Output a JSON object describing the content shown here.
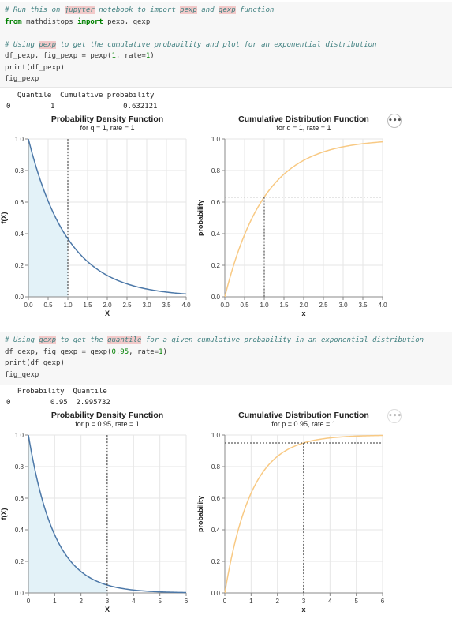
{
  "cell1": {
    "lines": [
      [
        {
          "t": "# Run this on ",
          "c": "cm"
        },
        {
          "t": "jupyter",
          "c": "cm hl"
        },
        {
          "t": " notebook to import ",
          "c": "cm"
        },
        {
          "t": "pexp",
          "c": "cm hl"
        },
        {
          "t": " and ",
          "c": "cm"
        },
        {
          "t": "qexp",
          "c": "cm hl"
        },
        {
          "t": " function",
          "c": "cm"
        }
      ],
      [
        {
          "t": "from",
          "c": "kw"
        },
        {
          "t": " mathdistops ",
          "c": ""
        },
        {
          "t": "import",
          "c": "kw"
        },
        {
          "t": " pexp, qexp",
          "c": ""
        }
      ],
      [
        {
          "t": "",
          "c": ""
        }
      ],
      [
        {
          "t": "# Using ",
          "c": "cm"
        },
        {
          "t": "pexp",
          "c": "cm hl"
        },
        {
          "t": " to get the cumulative probability and plot for an exponential distribution",
          "c": "cm"
        }
      ],
      [
        {
          "t": "df_pexp, fig_pexp = pexp(",
          "c": ""
        },
        {
          "t": "1",
          "c": "nm"
        },
        {
          "t": ", rate=",
          "c": ""
        },
        {
          "t": "1",
          "c": "nm"
        },
        {
          "t": ")",
          "c": ""
        }
      ],
      [
        {
          "t": "print(df_pexp)",
          "c": ""
        }
      ],
      [
        {
          "t": "fig_pexp",
          "c": ""
        }
      ]
    ]
  },
  "output1": {
    "header": "Quantile  Cumulative probability",
    "index": "0",
    "row": "1                0.632121"
  },
  "cell2": {
    "lines": [
      [
        {
          "t": "# Using ",
          "c": "cm"
        },
        {
          "t": "qexp",
          "c": "cm hl"
        },
        {
          "t": " to get the ",
          "c": "cm"
        },
        {
          "t": "quantile",
          "c": "cm hl"
        },
        {
          "t": " for a given cumulative probability in an exponential distribution",
          "c": "cm"
        }
      ],
      [
        {
          "t": "df_qexp, fig_qexp = qexp(",
          "c": ""
        },
        {
          "t": "0.95",
          "c": "nm"
        },
        {
          "t": ", rate=",
          "c": ""
        },
        {
          "t": "1",
          "c": "nm"
        },
        {
          "t": ")",
          "c": ""
        }
      ],
      [
        {
          "t": "print(df_qexp)",
          "c": ""
        }
      ],
      [
        {
          "t": "fig_qexp",
          "c": ""
        }
      ]
    ]
  },
  "output2": {
    "header": "Probability  Quantile",
    "index": "0",
    "row": "0.95  2.995732"
  },
  "more_label": "•••",
  "colors": {
    "pdf": "#4c78a8",
    "pdf_fill": "#e3f2f8",
    "cdf": "#f8c983",
    "grid": "#e6e6e6"
  },
  "chart_data": [
    {
      "type": "area",
      "title": "Probability Density Function",
      "subtitle": "for q = 1, rate = 1",
      "xlabel": "X",
      "ylabel": "f(X)",
      "function": "rate*exp(-rate*x)",
      "rate": 1,
      "xlim": [
        0,
        4
      ],
      "ylim": [
        0,
        1
      ],
      "xticks": [
        "0.0",
        "0.5",
        "1.0",
        "1.5",
        "2.0",
        "2.5",
        "3.0",
        "3.5",
        "4.0"
      ],
      "xtick_values": [
        0,
        0.5,
        1,
        1.5,
        2,
        2.5,
        3,
        3.5,
        4
      ],
      "yticks": [
        "0.0",
        "0.2",
        "0.4",
        "0.6",
        "0.8",
        "1.0"
      ],
      "ytick_values": [
        0,
        0.2,
        0.4,
        0.6,
        0.8,
        1
      ],
      "shade_to": 1,
      "vline": 1
    },
    {
      "type": "line",
      "title": "Cumulative Distribution Function",
      "subtitle": "for q = 1, rate = 1",
      "xlabel": "x",
      "ylabel": "probability",
      "function": "1-exp(-rate*x)",
      "rate": 1,
      "xlim": [
        0,
        4
      ],
      "ylim": [
        0,
        1
      ],
      "xticks": [
        "0.0",
        "0.5",
        "1.0",
        "1.5",
        "2.0",
        "2.5",
        "3.0",
        "3.5",
        "4.0"
      ],
      "xtick_values": [
        0,
        0.5,
        1,
        1.5,
        2,
        2.5,
        3,
        3.5,
        4
      ],
      "yticks": [
        "0.0",
        "0.2",
        "0.4",
        "0.6",
        "0.8",
        "1.0"
      ],
      "ytick_values": [
        0,
        0.2,
        0.4,
        0.6,
        0.8,
        1
      ],
      "vline": 1,
      "hline": 0.632121
    },
    {
      "type": "area",
      "title": "Probability Density Function",
      "subtitle": "for p = 0.95, rate = 1",
      "xlabel": "X",
      "ylabel": "f(X)",
      "function": "rate*exp(-rate*x)",
      "rate": 1,
      "xlim": [
        0,
        6
      ],
      "ylim": [
        0,
        1
      ],
      "xticks": [
        "0",
        "1",
        "2",
        "3",
        "4",
        "5",
        "6"
      ],
      "xtick_values": [
        0,
        1,
        2,
        3,
        4,
        5,
        6
      ],
      "yticks": [
        "0.0",
        "0.2",
        "0.4",
        "0.6",
        "0.8",
        "1.0"
      ],
      "ytick_values": [
        0,
        0.2,
        0.4,
        0.6,
        0.8,
        1
      ],
      "shade_to": 2.995732,
      "vline": 2.995732
    },
    {
      "type": "line",
      "title": "Cumulative Distribution Function",
      "subtitle": "for p = 0.95, rate = 1",
      "xlabel": "x",
      "ylabel": "probability",
      "function": "1-exp(-rate*x)",
      "rate": 1,
      "xlim": [
        0,
        6
      ],
      "ylim": [
        0,
        1
      ],
      "xticks": [
        "0",
        "1",
        "2",
        "3",
        "4",
        "5",
        "6"
      ],
      "xtick_values": [
        0,
        1,
        2,
        3,
        4,
        5,
        6
      ],
      "yticks": [
        "0.0",
        "0.2",
        "0.4",
        "0.6",
        "0.8",
        "1.0"
      ],
      "ytick_values": [
        0,
        0.2,
        0.4,
        0.6,
        0.8,
        1
      ],
      "vline": 2.995732,
      "hline": 0.95
    }
  ]
}
